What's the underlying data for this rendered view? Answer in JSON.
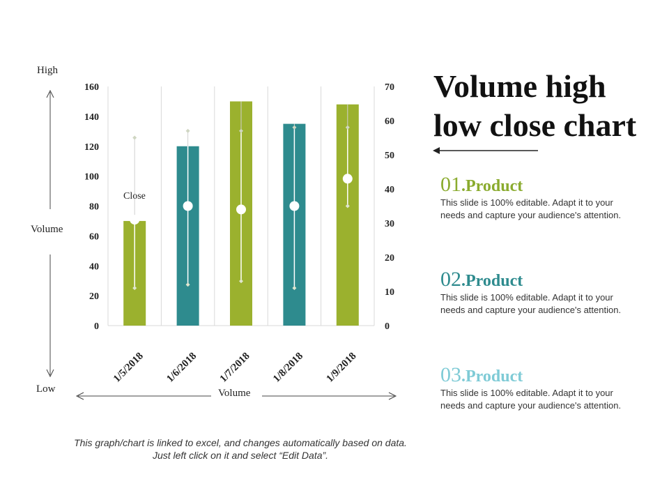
{
  "title": "Volume high low close chart",
  "side_labels": {
    "high": "High",
    "low": "Low",
    "volume_left": "Volume",
    "volume_bottom": "Volume"
  },
  "close_label": "Close",
  "footnote": "This graph/chart is linked to excel, and changes automatically based on data. Just left click on it and select “Edit Data”.",
  "products": [
    {
      "number": "01",
      "dot": ".",
      "name": "Product",
      "color": "#8aab2e",
      "description": "This slide is 100% editable. Adapt it to your needs and capture your audience's attention."
    },
    {
      "number": "02",
      "dot": ".",
      "name": "Product",
      "color": "#2e8b8e",
      "description": "This slide is 100% editable. Adapt it to your needs and capture your audience's attention."
    },
    {
      "number": "03",
      "dot": ".",
      "name": "Product",
      "color": "#7fcbd6",
      "description": "This slide is 100% editable. Adapt it to your needs and capture your audience's attention."
    }
  ],
  "chart_data": {
    "type": "bar",
    "title": "Volume high low close chart",
    "categories": [
      "1/5/2018",
      "1/6/2018",
      "1/7/2018",
      "1/8/2018",
      "1/9/2018"
    ],
    "volume": [
      70,
      120,
      150,
      135,
      148
    ],
    "bar_colors": [
      "#9bb12e",
      "#2e8b8e",
      "#9bb12e",
      "#2e8b8e",
      "#9bb12e"
    ],
    "high": [
      55,
      57,
      57,
      58,
      58
    ],
    "low": [
      11,
      12,
      13,
      11,
      35
    ],
    "close": [
      31,
      35,
      34,
      35,
      43
    ],
    "y_left": {
      "min": 0,
      "max": 160,
      "ticks": [
        0,
        20,
        40,
        60,
        80,
        100,
        120,
        140,
        160
      ]
    },
    "y_right": {
      "min": 0,
      "max": 70,
      "ticks": [
        0,
        10,
        20,
        30,
        40,
        50,
        60,
        70
      ]
    },
    "xlabel": "Volume",
    "ylabel_top": "High",
    "ylabel_bottom": "Low",
    "grid": "vertical"
  }
}
